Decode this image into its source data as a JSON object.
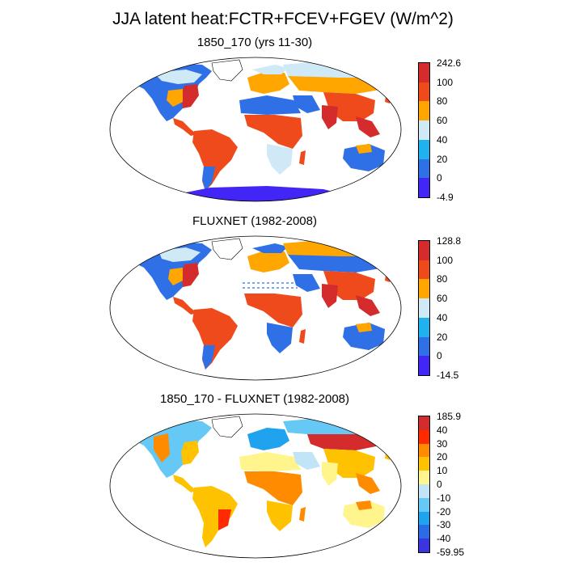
{
  "title": "JJA latent heat:FCTR+FCEV+FGEV (W/m^2)",
  "panels": [
    {
      "title": "1850_170 (yrs 11-30)",
      "colorbar": {
        "labels": [
          "242.6",
          "100",
          "80",
          "60",
          "40",
          "20",
          "0",
          "-4.9"
        ],
        "colors": [
          "#d42c2c",
          "#ef4a1c",
          "#ffa600",
          "#cfe9f7",
          "#1fb2ee",
          "#2f70e6",
          "#4226f5"
        ]
      }
    },
    {
      "title": "FLUXNET (1982-2008)",
      "colorbar": {
        "labels": [
          "128.8",
          "100",
          "80",
          "60",
          "40",
          "20",
          "0",
          "-14.5"
        ],
        "colors": [
          "#d42c2c",
          "#ef4a1c",
          "#ffa600",
          "#cfe9f7",
          "#1fb2ee",
          "#2f70e6",
          "#4226f5"
        ]
      }
    },
    {
      "title": "1850_170 - FLUXNET (1982-2008)",
      "colorbar": {
        "labels": [
          "185.9",
          "40",
          "30",
          "20",
          "10",
          "0",
          "-10",
          "-20",
          "-30",
          "-40",
          "-59.95"
        ],
        "colors": [
          "#d42c2c",
          "#ff2a00",
          "#ff8c00",
          "#ffc200",
          "#fff58c",
          "#c2e4f7",
          "#66c8f5",
          "#1fa3ef",
          "#2b6be6",
          "#3b35e0"
        ]
      }
    }
  ]
}
